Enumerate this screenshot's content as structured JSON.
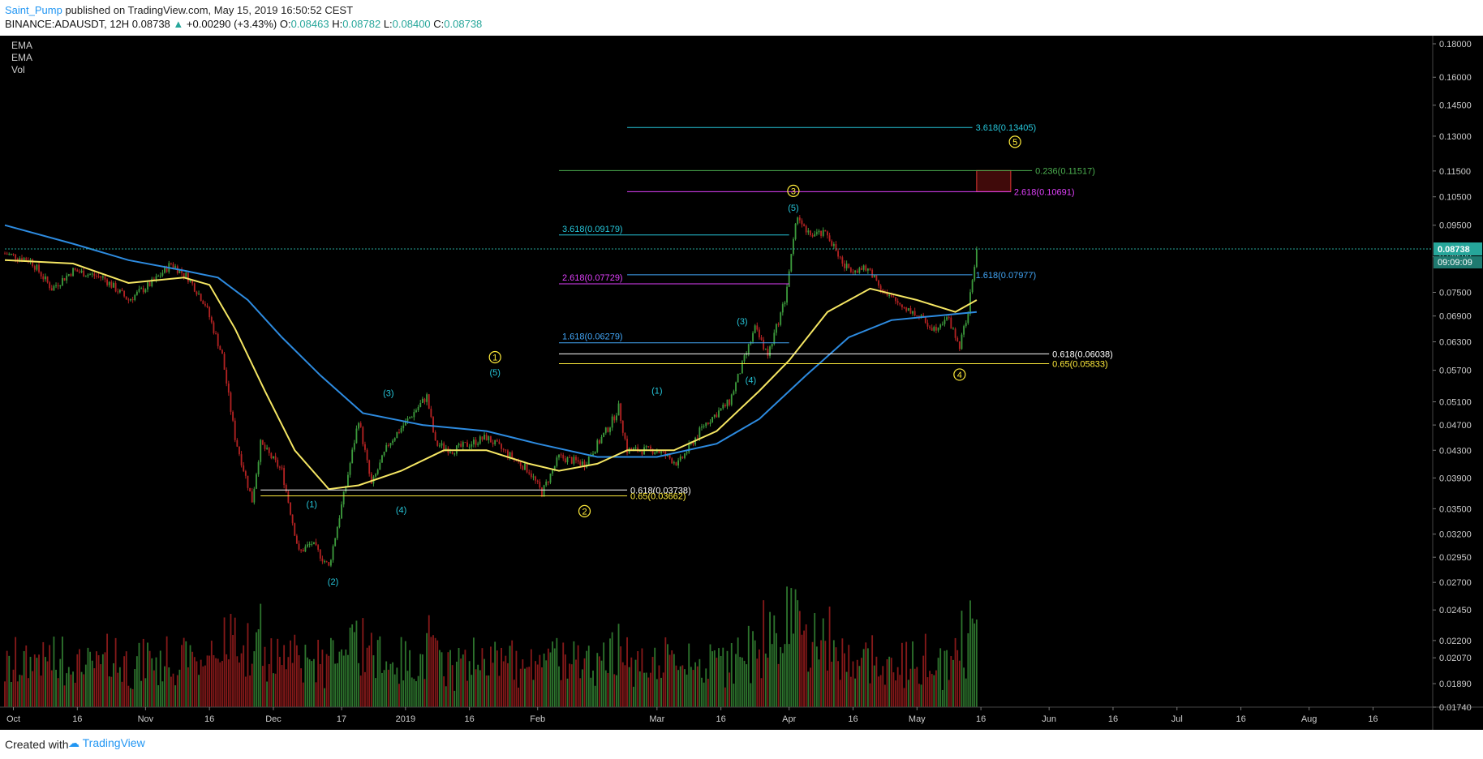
{
  "header": {
    "author": "Saint_Pump",
    "published": " published on TradingView.com, May 15, 2019 16:50:52 CEST",
    "symbol": "BINANCE:ADAUSDT, 12H",
    "last": "0.08738",
    "change_arrow": "▲",
    "change": "+0.00290 (+3.43%)",
    "o_label": "O:",
    "o": "0.08463",
    "h_label": "H:",
    "h": "0.08782",
    "l_label": "L:",
    "l": "0.08400",
    "c_label": "C:",
    "c": "0.08738"
  },
  "legend": [
    "EMA",
    "EMA",
    "Vol"
  ],
  "footer": {
    "created": "Created with",
    "brand": "TradingView"
  },
  "colors": {
    "bg": "#000000",
    "up": "#3c9a3c",
    "down": "#b22222",
    "ema_fast": "#f5e663",
    "ema_slow": "#2d8be0",
    "price_line": "#26a69a",
    "fib_white": "#ffffff",
    "fib_yellow": "#ffeb3b",
    "fib_cyan": "#26c6da",
    "fib_blue": "#42a5f5",
    "fib_magenta": "#e040fb",
    "fib_green": "#4caf50"
  },
  "chart_data": {
    "type": "candlestick",
    "y_scale": "log",
    "ylim": [
      0.0174,
      0.18
    ],
    "y_ticks": [
      "0.18000",
      "0.16000",
      "0.14500",
      "0.13000",
      "0.11500",
      "0.10500",
      "0.09500",
      "0.08500",
      "0.07500",
      "0.06900",
      "0.06300",
      "0.05700",
      "0.05100",
      "0.04700",
      "0.04300",
      "0.03900",
      "0.03500",
      "0.03200",
      "0.02950",
      "0.02700",
      "0.02450",
      "0.02200",
      "0.02070",
      "0.01890",
      "0.01740"
    ],
    "x_ticks": [
      "Oct",
      "16",
      "Nov",
      "16",
      "Dec",
      "17",
      "2019",
      "16",
      "Feb",
      "Mar",
      "16",
      "Apr",
      "16",
      "May",
      "16",
      "Jun",
      "16",
      "Jul",
      "16",
      "Aug",
      "16"
    ],
    "last_price": "0.08738",
    "countdown": "09:09:09",
    "price_path": [
      [
        "2018-09-29",
        0.086
      ],
      [
        "2018-10-05",
        0.084
      ],
      [
        "2018-10-10",
        0.076
      ],
      [
        "2018-10-15",
        0.081
      ],
      [
        "2018-10-22",
        0.079
      ],
      [
        "2018-10-28",
        0.073
      ],
      [
        "2018-11-03",
        0.078
      ],
      [
        "2018-11-07",
        0.083
      ],
      [
        "2018-11-11",
        0.079
      ],
      [
        "2018-11-15",
        0.072
      ],
      [
        "2018-11-19",
        0.06
      ],
      [
        "2018-11-22",
        0.045
      ],
      [
        "2018-11-26",
        0.036
      ],
      [
        "2018-11-28",
        0.044
      ],
      [
        "2018-12-03",
        0.04
      ],
      [
        "2018-12-07",
        0.03
      ],
      [
        "2018-12-10",
        0.031
      ],
      [
        "2018-12-14",
        0.0285
      ],
      [
        "2018-12-18",
        0.038
      ],
      [
        "2018-12-21",
        0.048
      ],
      [
        "2018-12-24",
        0.038
      ],
      [
        "2018-12-28",
        0.044
      ],
      [
        "2019-01-06",
        0.052
      ],
      [
        "2019-01-08",
        0.044
      ],
      [
        "2019-01-12",
        0.043
      ],
      [
        "2019-01-20",
        0.045
      ],
      [
        "2019-01-30",
        0.04
      ],
      [
        "2019-02-02",
        0.037
      ],
      [
        "2019-02-06",
        0.042
      ],
      [
        "2019-02-12",
        0.041
      ],
      [
        "2019-02-18",
        0.047
      ],
      [
        "2019-02-20",
        0.05
      ],
      [
        "2019-02-22",
        0.043
      ],
      [
        "2019-03-01",
        0.043
      ],
      [
        "2019-03-06",
        0.041
      ],
      [
        "2019-03-12",
        0.047
      ],
      [
        "2019-03-18",
        0.051
      ],
      [
        "2019-03-24",
        0.066
      ],
      [
        "2019-03-27",
        0.06
      ],
      [
        "2019-03-31",
        0.073
      ],
      [
        "2019-04-03",
        0.099
      ],
      [
        "2019-04-05",
        0.092
      ],
      [
        "2019-04-10",
        0.092
      ],
      [
        "2019-04-14",
        0.082
      ],
      [
        "2019-04-20",
        0.081
      ],
      [
        "2019-04-24",
        0.074
      ],
      [
        "2019-04-30",
        0.07
      ],
      [
        "2019-05-05",
        0.066
      ],
      [
        "2019-05-08",
        0.069
      ],
      [
        "2019-05-11",
        0.062
      ],
      [
        "2019-05-13",
        0.07
      ],
      [
        "2019-05-15",
        0.0874
      ]
    ],
    "ema_fast": [
      [
        "2018-09-29",
        0.084
      ],
      [
        "2018-10-15",
        0.083
      ],
      [
        "2018-10-28",
        0.0775
      ],
      [
        "2018-11-10",
        0.079
      ],
      [
        "2018-11-16",
        0.077
      ],
      [
        "2018-11-22",
        0.066
      ],
      [
        "2018-11-29",
        0.053
      ],
      [
        "2018-12-06",
        0.043
      ],
      [
        "2018-12-14",
        0.0375
      ],
      [
        "2018-12-21",
        0.038
      ],
      [
        "2018-12-31",
        0.04
      ],
      [
        "2019-01-10",
        0.043
      ],
      [
        "2019-01-20",
        0.043
      ],
      [
        "2019-01-30",
        0.041
      ],
      [
        "2019-02-06",
        0.04
      ],
      [
        "2019-02-15",
        0.041
      ],
      [
        "2019-02-22",
        0.043
      ],
      [
        "2019-03-05",
        0.043
      ],
      [
        "2019-03-15",
        0.046
      ],
      [
        "2019-03-25",
        0.053
      ],
      [
        "2019-04-01",
        0.059
      ],
      [
        "2019-04-10",
        0.07
      ],
      [
        "2019-04-20",
        0.076
      ],
      [
        "2019-05-01",
        0.073
      ],
      [
        "2019-05-10",
        0.07
      ],
      [
        "2019-05-15",
        0.073
      ]
    ],
    "ema_slow": [
      [
        "2018-09-29",
        0.095
      ],
      [
        "2018-10-15",
        0.089
      ],
      [
        "2018-10-28",
        0.084
      ],
      [
        "2018-11-10",
        0.081
      ],
      [
        "2018-11-18",
        0.079
      ],
      [
        "2018-11-25",
        0.073
      ],
      [
        "2018-12-03",
        0.064
      ],
      [
        "2018-12-12",
        0.056
      ],
      [
        "2018-12-22",
        0.049
      ],
      [
        "2019-01-05",
        0.047
      ],
      [
        "2019-01-20",
        0.046
      ],
      [
        "2019-02-01",
        0.044
      ],
      [
        "2019-02-15",
        0.042
      ],
      [
        "2019-03-01",
        0.042
      ],
      [
        "2019-03-15",
        0.044
      ],
      [
        "2019-03-25",
        0.048
      ],
      [
        "2019-04-05",
        0.056
      ],
      [
        "2019-04-15",
        0.064
      ],
      [
        "2019-04-25",
        0.068
      ],
      [
        "2019-05-05",
        0.069
      ],
      [
        "2019-05-15",
        0.07
      ]
    ],
    "wave_labels": [
      {
        "text": "(1)",
        "date": "2018-12-10",
        "price": 0.0352,
        "color": "cyan"
      },
      {
        "text": "(2)",
        "date": "2018-12-15",
        "price": 0.0268,
        "color": "cyan"
      },
      {
        "text": "(3)",
        "date": "2018-12-28",
        "price": 0.052,
        "color": "cyan"
      },
      {
        "text": "(4)",
        "date": "2018-12-31",
        "price": 0.0345,
        "color": "cyan"
      },
      {
        "text": "(5)",
        "date": "2019-01-22",
        "price": 0.056,
        "color": "cyan"
      },
      {
        "text": "1",
        "date": "2019-01-22",
        "price": 0.059,
        "color": "yellow",
        "circled": true
      },
      {
        "text": "2",
        "date": "2019-02-12",
        "price": 0.0343,
        "color": "yellow",
        "circled": true
      },
      {
        "text": "(1)",
        "date": "2019-03-01",
        "price": 0.0525,
        "color": "cyan"
      },
      {
        "text": "(3)",
        "date": "2019-03-21",
        "price": 0.067,
        "color": "cyan"
      },
      {
        "text": "(4)",
        "date": "2019-03-23",
        "price": 0.0545,
        "color": "cyan"
      },
      {
        "text": "(5)",
        "date": "2019-04-02",
        "price": 0.1,
        "color": "cyan"
      },
      {
        "text": "3",
        "date": "2019-04-02",
        "price": 0.106,
        "color": "yellow",
        "circled": true
      },
      {
        "text": "4",
        "date": "2019-05-11",
        "price": 0.0555,
        "color": "yellow",
        "circled": true
      },
      {
        "text": "5",
        "date": "2019-05-24",
        "price": 0.126,
        "color": "yellow",
        "circled": true
      }
    ],
    "fib_levels": [
      {
        "label": "0.618(0.03738)",
        "price": 0.03738,
        "from": "2018-11-28",
        "to": "2019-02-22",
        "color": "white"
      },
      {
        "label": "0.65(0.03662)",
        "price": 0.03662,
        "from": "2018-11-28",
        "to": "2019-02-22",
        "color": "yellow"
      },
      {
        "label": "1.618(0.06279)",
        "price": 0.06279,
        "from": "2019-02-06",
        "to": "2019-04-01",
        "color": "blue"
      },
      {
        "label": "2.618(0.07729)",
        "price": 0.07729,
        "from": "2019-02-06",
        "to": "2019-04-01",
        "color": "magenta"
      },
      {
        "label": "3.618(0.09179)",
        "price": 0.09179,
        "from": "2019-02-06",
        "to": "2019-04-01",
        "color": "cyan"
      },
      {
        "label": "0.618(0.06038)",
        "price": 0.06038,
        "from": "2019-02-06",
        "to": "2019-06-01",
        "color": "white"
      },
      {
        "label": "0.65(0.05833)",
        "price": 0.05833,
        "from": "2019-02-06",
        "to": "2019-06-01",
        "color": "yellow"
      },
      {
        "label": "1.618(0.07977)",
        "price": 0.07977,
        "from": "2019-02-22",
        "to": "2019-05-14",
        "color": "blue"
      },
      {
        "label": "2.618(0.10691)",
        "price": 0.10691,
        "from": "2019-02-22",
        "to": "2019-05-23",
        "color": "magenta"
      },
      {
        "label": "3.618(0.13405)",
        "price": 0.13405,
        "from": "2019-02-22",
        "to": "2019-05-14",
        "color": "cyan"
      },
      {
        "label": "0.236(0.11517)",
        "price": 0.11517,
        "from": "2019-02-06",
        "to": "2019-05-28",
        "color": "green"
      }
    ],
    "target_box": {
      "from": "2019-05-15",
      "to": "2019-05-23",
      "price_low": 0.10691,
      "price_high": 0.11517
    }
  }
}
